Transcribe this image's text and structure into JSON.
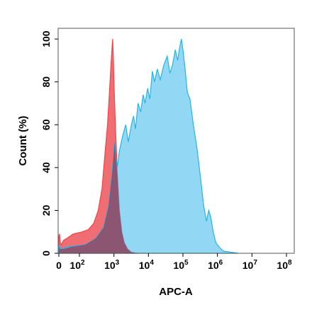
{
  "chart_data": {
    "type": "area",
    "title": "",
    "xlabel": "APC-A",
    "ylabel": "Count (%)",
    "x_scale": "log (biexponential, 0 shown)",
    "xlim": [
      0,
      100000000
    ],
    "ylim": [
      0,
      105
    ],
    "x_ticks": [
      {
        "value": 0,
        "label": "0"
      },
      {
        "value": 100,
        "base": "10",
        "exp": "2"
      },
      {
        "value": 1000,
        "base": "10",
        "exp": "3"
      },
      {
        "value": 10000,
        "base": "10",
        "exp": "4"
      },
      {
        "value": 100000,
        "base": "10",
        "exp": "5"
      },
      {
        "value": 1000000,
        "base": "10",
        "exp": "6"
      },
      {
        "value": 10000000,
        "base": "10",
        "exp": "7"
      },
      {
        "value": 100000000,
        "base": "10",
        "exp": "8"
      }
    ],
    "y_ticks": [
      0,
      20,
      40,
      60,
      80,
      100
    ],
    "grid": false,
    "legend": "none",
    "series": [
      {
        "color": "#F0454B",
        "fill": "rgba(235,60,70,0.75)",
        "points": [
          [
            0,
            8
          ],
          [
            3,
            9
          ],
          [
            7,
            5
          ],
          [
            12,
            4
          ],
          [
            22,
            6
          ],
          [
            40,
            7
          ],
          [
            70,
            9
          ],
          [
            120,
            10
          ],
          [
            180,
            11
          ],
          [
            260,
            14
          ],
          [
            350,
            20
          ],
          [
            450,
            30
          ],
          [
            560,
            48
          ],
          [
            650,
            60
          ],
          [
            740,
            75
          ],
          [
            820,
            88
          ],
          [
            880,
            96
          ],
          [
            920,
            100
          ],
          [
            960,
            92
          ],
          [
            1010,
            78
          ],
          [
            1100,
            60
          ],
          [
            1250,
            38
          ],
          [
            1450,
            20
          ],
          [
            1700,
            10
          ],
          [
            2000,
            5
          ],
          [
            2500,
            2
          ],
          [
            3200,
            0.5
          ],
          [
            5000,
            0
          ]
        ]
      },
      {
        "color": "#27B5E3",
        "fill": "rgba(100,200,240,0.70)",
        "points": [
          [
            0,
            4
          ],
          [
            3,
            3
          ],
          [
            10,
            2
          ],
          [
            40,
            3
          ],
          [
            150,
            4
          ],
          [
            300,
            7
          ],
          [
            500,
            12
          ],
          [
            700,
            22
          ],
          [
            900,
            38
          ],
          [
            1050,
            52
          ],
          [
            1150,
            44
          ],
          [
            1250,
            40
          ],
          [
            1450,
            48
          ],
          [
            1800,
            55
          ],
          [
            2200,
            60
          ],
          [
            2600,
            52
          ],
          [
            3200,
            60
          ],
          [
            3700,
            64
          ],
          [
            4200,
            58
          ],
          [
            5000,
            70
          ],
          [
            6000,
            66
          ],
          [
            7000,
            74
          ],
          [
            8000,
            70
          ],
          [
            9500,
            77
          ],
          [
            11000,
            72
          ],
          [
            13000,
            85
          ],
          [
            15000,
            80
          ],
          [
            18000,
            86
          ],
          [
            22000,
            81
          ],
          [
            28000,
            88
          ],
          [
            35000,
            92
          ],
          [
            42000,
            84
          ],
          [
            50000,
            88
          ],
          [
            60000,
            95
          ],
          [
            70000,
            90
          ],
          [
            80000,
            96
          ],
          [
            90000,
            100
          ],
          [
            100000,
            95
          ],
          [
            115000,
            86
          ],
          [
            135000,
            75
          ],
          [
            160000,
            72
          ],
          [
            200000,
            60
          ],
          [
            260000,
            48
          ],
          [
            330000,
            34
          ],
          [
            400000,
            22
          ],
          [
            480000,
            15
          ],
          [
            560000,
            20
          ],
          [
            640000,
            17
          ],
          [
            750000,
            10
          ],
          [
            900000,
            5
          ],
          [
            1100000,
            3
          ],
          [
            1500000,
            1
          ],
          [
            2500000,
            0.5
          ],
          [
            4000000,
            0
          ]
        ]
      },
      {
        "color": "#8A4A63",
        "fill": "rgba(140,70,100,0.85)",
        "points": [
          [
            0,
            3
          ],
          [
            5,
            2
          ],
          [
            20,
            2
          ],
          [
            60,
            3
          ],
          [
            150,
            4
          ],
          [
            300,
            7
          ],
          [
            500,
            12
          ],
          [
            700,
            22
          ],
          [
            900,
            38
          ],
          [
            1050,
            52
          ],
          [
            1150,
            44
          ],
          [
            1250,
            38
          ],
          [
            1450,
            20
          ],
          [
            1700,
            10
          ],
          [
            2000,
            5
          ],
          [
            2500,
            2
          ],
          [
            3200,
            0.5
          ],
          [
            5000,
            0
          ]
        ]
      }
    ]
  }
}
